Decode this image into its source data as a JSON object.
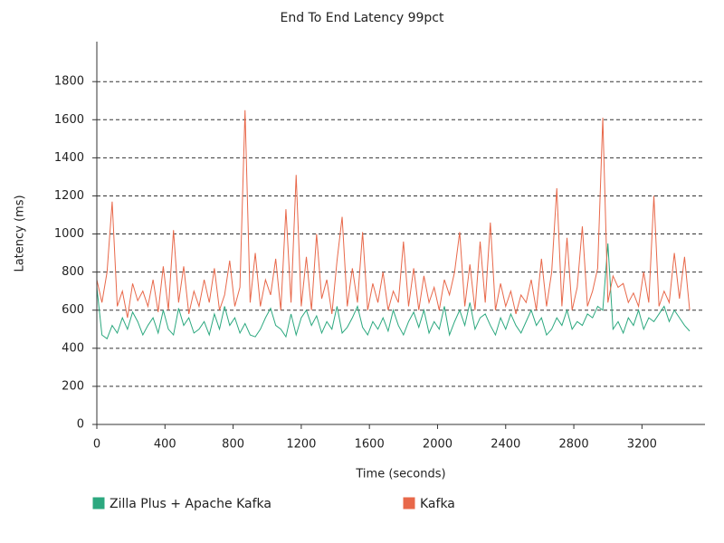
{
  "chart_data": {
    "type": "line",
    "title": "End To End Latency 99pct",
    "x_label": "Time (seconds)",
    "y_label": "Latency (ms)",
    "xlim": [
      0,
      3570
    ],
    "ylim": [
      0,
      2010
    ],
    "xticks": [
      0,
      400,
      800,
      1200,
      1600,
      2000,
      2400,
      2800,
      3200
    ],
    "yticks": [
      0,
      200,
      400,
      600,
      800,
      1000,
      1200,
      1400,
      1600,
      1800
    ],
    "grid": true,
    "legend_position": "bottom",
    "x": [
      0,
      30,
      60,
      90,
      120,
      150,
      180,
      210,
      240,
      270,
      300,
      330,
      360,
      390,
      420,
      450,
      480,
      510,
      540,
      570,
      600,
      630,
      660,
      690,
      720,
      750,
      780,
      810,
      840,
      870,
      900,
      930,
      960,
      990,
      1020,
      1050,
      1080,
      1110,
      1140,
      1170,
      1200,
      1230,
      1260,
      1290,
      1320,
      1350,
      1380,
      1410,
      1440,
      1470,
      1500,
      1530,
      1560,
      1590,
      1620,
      1650,
      1680,
      1710,
      1740,
      1770,
      1800,
      1830,
      1860,
      1890,
      1920,
      1950,
      1980,
      2010,
      2040,
      2070,
      2100,
      2130,
      2160,
      2190,
      2220,
      2250,
      2280,
      2310,
      2340,
      2370,
      2400,
      2430,
      2460,
      2490,
      2520,
      2550,
      2580,
      2610,
      2640,
      2670,
      2700,
      2730,
      2760,
      2790,
      2820,
      2850,
      2880,
      2910,
      2940,
      2970,
      3000,
      3030,
      3060,
      3090,
      3120,
      3150,
      3180,
      3210,
      3240,
      3270,
      3300,
      3330,
      3360,
      3390,
      3420,
      3450,
      3480
    ],
    "series": [
      {
        "name": "Zilla Plus + Apache Kafka",
        "color": "#2ca87f",
        "values": [
          720,
          470,
          450,
          520,
          480,
          560,
          500,
          590,
          540,
          470,
          520,
          560,
          480,
          600,
          500,
          470,
          610,
          520,
          560,
          480,
          500,
          540,
          470,
          580,
          500,
          620,
          520,
          560,
          480,
          530,
          470,
          460,
          500,
          560,
          610,
          520,
          500,
          460,
          580,
          470,
          560,
          600,
          520,
          570,
          480,
          540,
          500,
          620,
          480,
          510,
          560,
          620,
          510,
          470,
          540,
          500,
          560,
          490,
          600,
          520,
          470,
          540,
          590,
          510,
          600,
          480,
          540,
          500,
          620,
          470,
          540,
          600,
          520,
          640,
          500,
          560,
          580,
          520,
          470,
          560,
          500,
          580,
          520,
          480,
          540,
          600,
          520,
          560,
          470,
          500,
          560,
          520,
          600,
          500,
          540,
          520,
          580,
          560,
          620,
          600,
          950,
          500,
          540,
          480,
          560,
          520,
          600,
          500,
          560,
          540,
          580,
          620,
          540,
          600,
          560,
          520,
          490
        ]
      },
      {
        "name": "Kafka",
        "color": "#e8684a",
        "values": [
          760,
          640,
          800,
          1170,
          620,
          700,
          560,
          740,
          650,
          700,
          620,
          760,
          590,
          830,
          600,
          1020,
          640,
          830,
          580,
          700,
          620,
          760,
          640,
          820,
          600,
          680,
          860,
          620,
          720,
          1650,
          640,
          900,
          620,
          760,
          680,
          870,
          600,
          1130,
          640,
          1310,
          620,
          880,
          600,
          1000,
          660,
          760,
          580,
          860,
          1090,
          620,
          820,
          640,
          1010,
          600,
          740,
          640,
          800,
          600,
          700,
          640,
          960,
          620,
          820,
          600,
          780,
          640,
          720,
          600,
          760,
          680,
          800,
          1010,
          620,
          840,
          600,
          960,
          640,
          1060,
          600,
          740,
          620,
          700,
          580,
          680,
          640,
          760,
          600,
          870,
          620,
          800,
          1240,
          620,
          980,
          600,
          720,
          1040,
          620,
          700,
          820,
          1610,
          640,
          780,
          720,
          740,
          640,
          690,
          620,
          800,
          640,
          1200,
          620,
          700,
          640,
          900,
          660,
          880,
          600
        ]
      }
    ]
  }
}
